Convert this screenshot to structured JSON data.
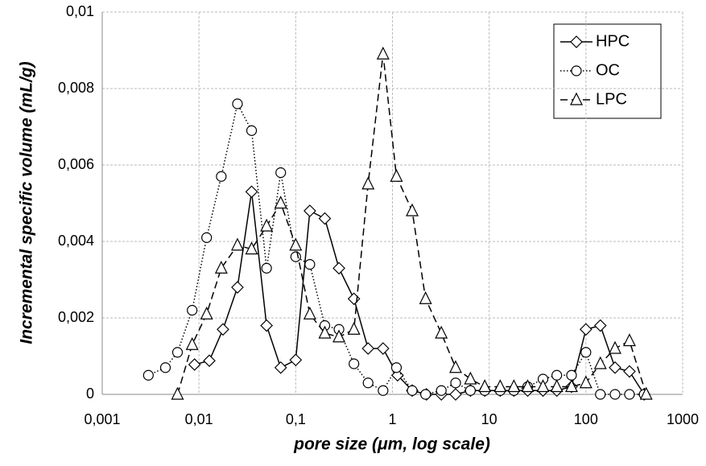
{
  "chart_data": {
    "type": "line",
    "x_label": "pore size (μm, log scale)",
    "y_label": "Incremental specific volume (mL/g)",
    "log_x": true,
    "grid": true,
    "legend": "upper right",
    "xlim": [
      0.001,
      1000
    ],
    "xticks": [
      {
        "value": 0.001,
        "label": "0,001"
      },
      {
        "value": 0.01,
        "label": "0,01"
      },
      {
        "value": 0.1,
        "label": "0,1"
      },
      1,
      10,
      100,
      1000
    ],
    "ylim": [
      0,
      0.01
    ],
    "yticks": [
      0,
      {
        "value": 0.002,
        "label": "0,002"
      },
      {
        "value": 0.004,
        "label": "0,004"
      },
      {
        "value": 0.006,
        "label": "0,006"
      },
      {
        "value": 0.008,
        "label": "0,008"
      },
      {
        "value": 0.01,
        "label": "0,01"
      }
    ],
    "series": [
      {
        "name": "HPC",
        "color": "#000000",
        "marker": "diamond",
        "linestyle": "solid",
        "x": [
          0.009,
          0.0128,
          0.0177,
          0.025,
          0.035,
          0.05,
          0.07,
          0.1,
          0.14,
          0.2,
          0.28,
          0.4,
          0.56,
          0.8,
          1.13,
          1.6,
          2.25,
          3.2,
          4.5,
          6.4,
          9,
          13,
          18,
          25,
          36,
          50,
          71,
          100,
          141,
          200,
          282,
          400
        ],
        "values": [
          0.00078,
          0.00088,
          0.0017,
          0.0028,
          0.0053,
          0.0018,
          0.0007,
          0.0009,
          0.0048,
          0.0046,
          0.0033,
          0.0025,
          0.0012,
          0.0012,
          0.0005,
          0.0001,
          0,
          0,
          0,
          0.0001,
          0.0001,
          0.0001,
          0.0001,
          0.0001,
          0.0001,
          0.0001,
          0.0002,
          0.0017,
          0.0018,
          0.0007,
          0.0006,
          0
        ]
      },
      {
        "name": "OC",
        "color": "#000000",
        "marker": "circle",
        "linestyle": "dotted",
        "x": [
          0.003,
          0.0045,
          0.006,
          0.0085,
          0.012,
          0.017,
          0.025,
          0.035,
          0.05,
          0.07,
          0.1,
          0.14,
          0.2,
          0.28,
          0.4,
          0.56,
          0.8,
          1.1,
          1.6,
          2.2,
          3.2,
          4.5,
          6.4,
          9,
          13,
          18,
          25,
          36,
          50,
          71,
          100,
          141,
          200,
          282,
          400
        ],
        "values": [
          0.0005,
          0.0007,
          0.0011,
          0.0022,
          0.0041,
          0.0057,
          0.0076,
          0.0069,
          0.0033,
          0.0058,
          0.0036,
          0.0034,
          0.0018,
          0.0017,
          0.0008,
          0.0003,
          0.0001,
          0.0007,
          0.0001,
          0,
          0.0001,
          0.0003,
          0.0001,
          0.0001,
          0.0001,
          0.0001,
          0.0002,
          0.0004,
          0.0005,
          0.0005,
          0.0011,
          0,
          0,
          0,
          0
        ]
      },
      {
        "name": "LPC",
        "color": "#000000",
        "marker": "triangle",
        "linestyle": "dashed",
        "x": [
          0.006,
          0.0085,
          0.012,
          0.017,
          0.025,
          0.035,
          0.05,
          0.07,
          0.1,
          0.14,
          0.2,
          0.28,
          0.4,
          0.56,
          0.8,
          1.1,
          1.6,
          2.2,
          3.2,
          4.5,
          6.4,
          9,
          13,
          18,
          25,
          36,
          50,
          71,
          100,
          141,
          200,
          282,
          420
        ],
        "values": [
          0,
          0.0013,
          0.0021,
          0.0033,
          0.0039,
          0.0038,
          0.0044,
          0.005,
          0.0039,
          0.0021,
          0.0016,
          0.0015,
          0.0017,
          0.0055,
          0.0089,
          0.0057,
          0.0048,
          0.0025,
          0.0016,
          0.0007,
          0.0004,
          0.0002,
          0.0002,
          0.0002,
          0.0002,
          0.0002,
          0.0002,
          0.0002,
          0.0003,
          0.0008,
          0.0012,
          0.0014,
          0
        ]
      }
    ]
  }
}
